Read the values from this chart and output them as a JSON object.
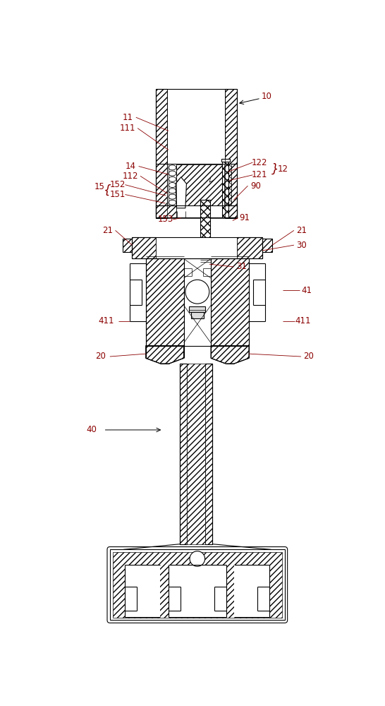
{
  "bg_color": "#ffffff",
  "line_color": "#000000",
  "label_color": "#8B0000",
  "lw": 0.8,
  "lw_thin": 0.5,
  "fig_w": 5.46,
  "fig_h": 10.0,
  "dpi": 100
}
